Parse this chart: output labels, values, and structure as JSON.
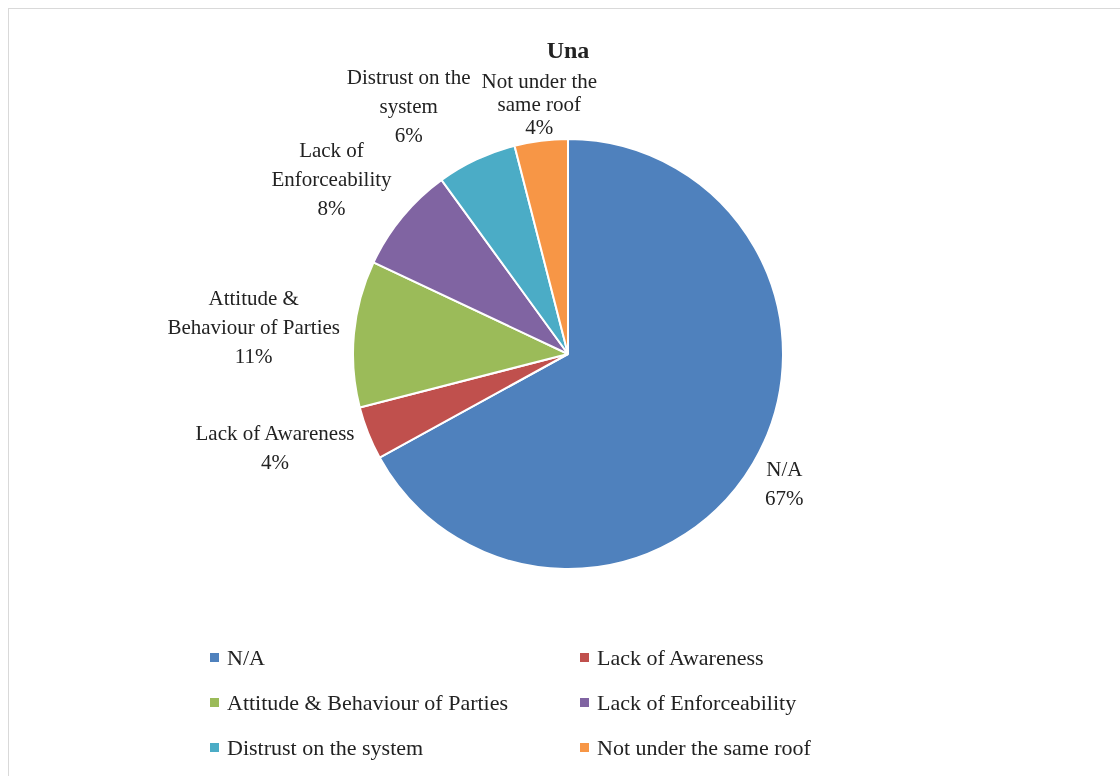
{
  "chart_data": {
    "type": "pie",
    "title": "Una",
    "categories": [
      "N/A",
      "Lack of Awareness",
      "Attitude & Behaviour of Parties",
      "Lack of Enforceability",
      "Distrust on the system",
      "Not under the same roof"
    ],
    "values": [
      67,
      4,
      11,
      8,
      6,
      4
    ],
    "colors": [
      "#4f81bd",
      "#c0504d",
      "#9bbb59",
      "#8064a2",
      "#4bacc6",
      "#f79646"
    ],
    "value_labels": [
      "67%",
      "4%",
      "11%",
      "8%",
      "6%",
      "4%"
    ],
    "legend": "bottom"
  }
}
